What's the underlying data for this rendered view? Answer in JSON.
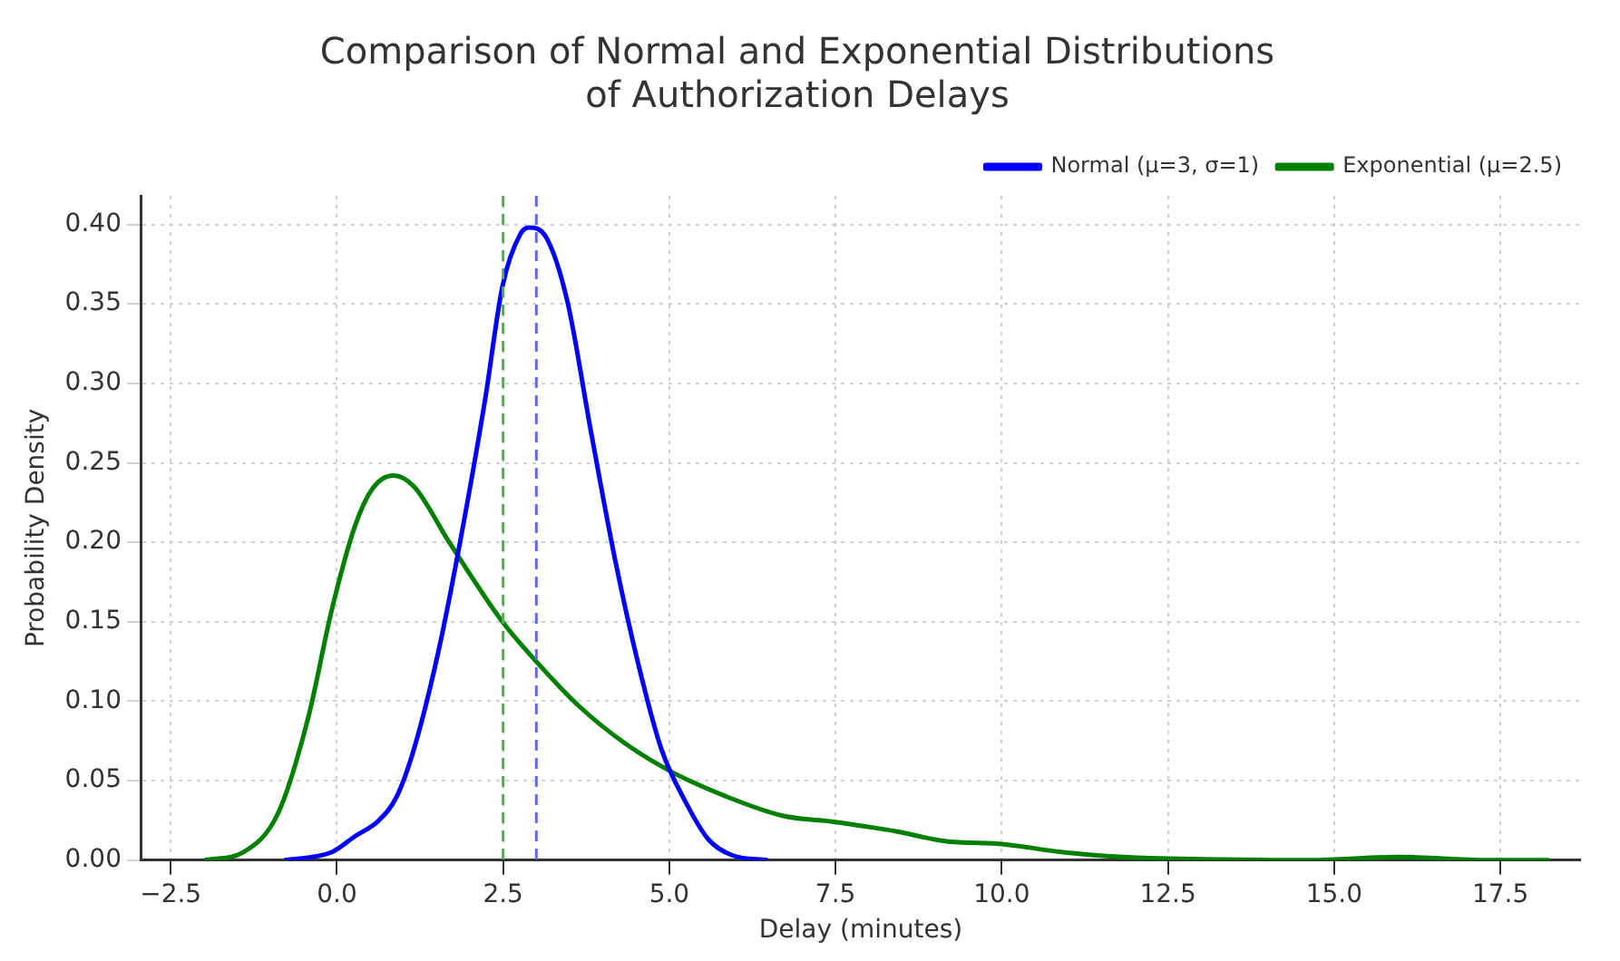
{
  "chart_data": {
    "type": "line",
    "title": "Comparison of Normal and Exponential Distributions\nof Authorization Delays",
    "xlabel": "Delay (minutes)",
    "ylabel": "Probability Density",
    "xlim": [
      -2.94,
      18.7
    ],
    "xticks": [
      {
        "value": -2.5,
        "label": "−2.5"
      },
      {
        "value": 0,
        "label": "0.0"
      },
      {
        "value": 2.5,
        "label": "2.5"
      },
      {
        "value": 5,
        "label": "5.0"
      },
      {
        "value": 7.5,
        "label": "7.5"
      },
      {
        "value": 10,
        "label": "10.0"
      },
      {
        "value": 12.5,
        "label": "12.5"
      },
      {
        "value": 15,
        "label": "15.0"
      },
      {
        "value": 17.5,
        "label": "17.5"
      }
    ],
    "ylim": [
      0,
      0.418
    ],
    "yticks": [
      {
        "value": 0,
        "label": "0.00"
      },
      {
        "value": 0.05,
        "label": "0.05"
      },
      {
        "value": 0.1,
        "label": "0.10"
      },
      {
        "value": 0.15,
        "label": "0.15"
      },
      {
        "value": 0.2,
        "label": "0.20"
      },
      {
        "value": 0.25,
        "label": "0.25"
      },
      {
        "value": 0.3,
        "label": "0.30"
      },
      {
        "value": 0.35,
        "label": "0.35"
      },
      {
        "value": 0.4,
        "label": "0.40"
      }
    ],
    "grid": true,
    "legend": "top right",
    "marker": "none",
    "line_style": "solid",
    "series": [
      {
        "name": "Normal (μ=3, σ=1)",
        "color": "#0000ff",
        "x": [
          -0.79,
          -0.08,
          0.27,
          0.63,
          0.9,
          1.16,
          1.52,
          1.87,
          2.23,
          2.49,
          2.76,
          2.89,
          3.16,
          3.47,
          3.82,
          4.18,
          4.53,
          4.88,
          5.24,
          5.59,
          5.95,
          6.48
        ],
        "values": [
          0,
          0.005,
          0.015,
          0.025,
          0.04,
          0.07,
          0.13,
          0.204,
          0.29,
          0.361,
          0.394,
          0.398,
          0.391,
          0.351,
          0.27,
          0.19,
          0.124,
          0.07,
          0.037,
          0.013,
          0.003,
          0
        ]
      },
      {
        "name": "Exponential (μ=2.5)",
        "color": "#008000",
        "x": [
          -1.99,
          -1.41,
          -0.88,
          -0.43,
          -0.08,
          0.27,
          0.54,
          0.85,
          1.16,
          1.69,
          2.49,
          3.02,
          3.64,
          4.35,
          5.06,
          5.86,
          6.7,
          7.5,
          7.99,
          8.43,
          9.14,
          10.03,
          10.92,
          11.81,
          12.5,
          14.64,
          15.97,
          17.3,
          18.24
        ],
        "values": [
          0,
          0.005,
          0.03,
          0.09,
          0.157,
          0.21,
          0.234,
          0.242,
          0.235,
          0.2,
          0.15,
          0.124,
          0.097,
          0.073,
          0.055,
          0.04,
          0.028,
          0.024,
          0.021,
          0.018,
          0.012,
          0.01,
          0.005,
          0.002,
          0.001,
          0,
          0.002,
          0,
          0
        ]
      }
    ],
    "ref_lines": [
      {
        "axis": "x",
        "value": 2.5,
        "color": "#55aa55",
        "line_style": "dashed"
      },
      {
        "axis": "x",
        "value": 3,
        "color": "#6666ff",
        "line_style": "dashed"
      }
    ]
  }
}
